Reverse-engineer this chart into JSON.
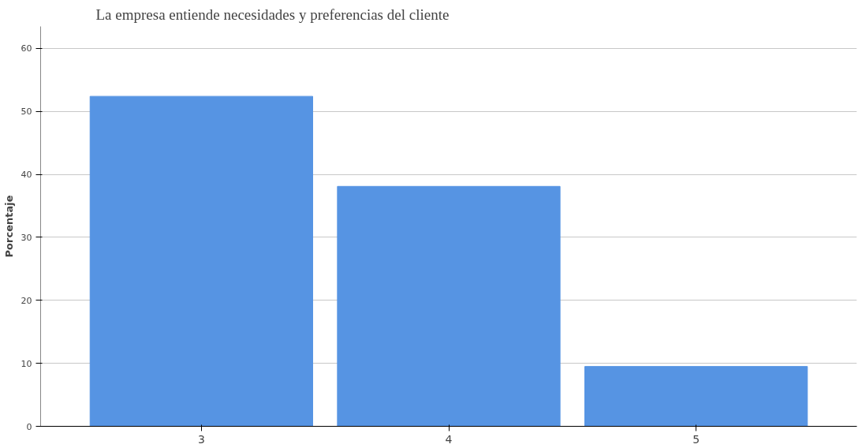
{
  "chart_data": {
    "type": "bar",
    "title": "La empresa entiende necesidades y preferencias del cliente",
    "ylabel": "Porcentaje",
    "categories": [
      "3",
      "4",
      "5"
    ],
    "values": [
      52.4,
      38.1,
      9.5
    ],
    "color": "#5694e3",
    "ylim": [
      0,
      63.5
    ],
    "yticks": [
      0,
      10,
      20,
      30,
      40,
      50,
      60
    ],
    "grid": "y"
  }
}
